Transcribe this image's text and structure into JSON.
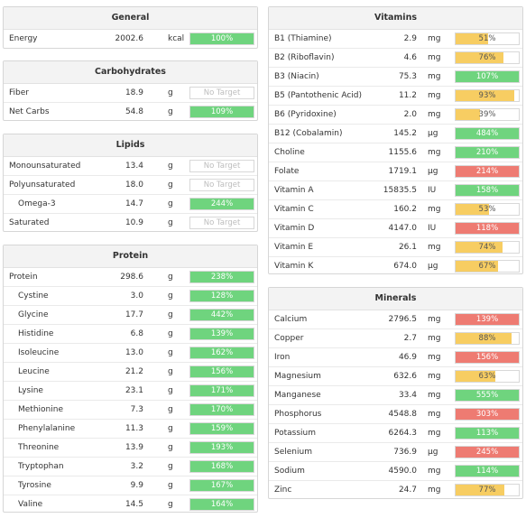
{
  "colors": {
    "green": "#6fd47e",
    "yellow": "#f7cd62",
    "red": "#ee7b72",
    "notarget_text": "#bdbdbd"
  },
  "panels": [
    {
      "key": "general",
      "title": "General",
      "rows": [
        {
          "name": "Energy",
          "amount": "2002.6",
          "unit": "kcal",
          "pct": "100%",
          "value": 100,
          "status": "green"
        }
      ]
    },
    {
      "key": "carbohydrates",
      "title": "Carbohydrates",
      "rows": [
        {
          "name": "Fiber",
          "amount": "18.9",
          "unit": "g",
          "pct": "No Target",
          "value": 0,
          "status": "none"
        },
        {
          "name": "Net Carbs",
          "amount": "54.8",
          "unit": "g",
          "pct": "109%",
          "value": 100,
          "status": "green"
        }
      ]
    },
    {
      "key": "lipids",
      "title": "Lipids",
      "rows": [
        {
          "name": "Monounsaturated",
          "amount": "13.4",
          "unit": "g",
          "pct": "No Target",
          "value": 0,
          "status": "none"
        },
        {
          "name": "Polyunsaturated",
          "amount": "18.0",
          "unit": "g",
          "pct": "No Target",
          "value": 0,
          "status": "none"
        },
        {
          "name": "Omega-3",
          "amount": "14.7",
          "unit": "g",
          "pct": "244%",
          "value": 100,
          "status": "green",
          "sub": true
        },
        {
          "name": "Saturated",
          "amount": "10.9",
          "unit": "g",
          "pct": "No Target",
          "value": 0,
          "status": "none"
        }
      ]
    },
    {
      "key": "protein",
      "title": "Protein",
      "rows": [
        {
          "name": "Protein",
          "amount": "298.6",
          "unit": "g",
          "pct": "238%",
          "value": 100,
          "status": "green"
        },
        {
          "name": "Cystine",
          "amount": "3.0",
          "unit": "g",
          "pct": "128%",
          "value": 100,
          "status": "green",
          "sub": true
        },
        {
          "name": "Glycine",
          "amount": "17.7",
          "unit": "g",
          "pct": "442%",
          "value": 100,
          "status": "green",
          "sub": true
        },
        {
          "name": "Histidine",
          "amount": "6.8",
          "unit": "g",
          "pct": "139%",
          "value": 100,
          "status": "green",
          "sub": true
        },
        {
          "name": "Isoleucine",
          "amount": "13.0",
          "unit": "g",
          "pct": "162%",
          "value": 100,
          "status": "green",
          "sub": true
        },
        {
          "name": "Leucine",
          "amount": "21.2",
          "unit": "g",
          "pct": "156%",
          "value": 100,
          "status": "green",
          "sub": true
        },
        {
          "name": "Lysine",
          "amount": "23.1",
          "unit": "g",
          "pct": "171%",
          "value": 100,
          "status": "green",
          "sub": true
        },
        {
          "name": "Methionine",
          "amount": "7.3",
          "unit": "g",
          "pct": "170%",
          "value": 100,
          "status": "green",
          "sub": true
        },
        {
          "name": "Phenylalanine",
          "amount": "11.3",
          "unit": "g",
          "pct": "159%",
          "value": 100,
          "status": "green",
          "sub": true
        },
        {
          "name": "Threonine",
          "amount": "13.9",
          "unit": "g",
          "pct": "193%",
          "value": 100,
          "status": "green",
          "sub": true
        },
        {
          "name": "Tryptophan",
          "amount": "3.2",
          "unit": "g",
          "pct": "168%",
          "value": 100,
          "status": "green",
          "sub": true
        },
        {
          "name": "Tyrosine",
          "amount": "9.9",
          "unit": "g",
          "pct": "167%",
          "value": 100,
          "status": "green",
          "sub": true
        },
        {
          "name": "Valine",
          "amount": "14.5",
          "unit": "g",
          "pct": "164%",
          "value": 100,
          "status": "green",
          "sub": true
        }
      ]
    },
    {
      "key": "vitamins",
      "title": "Vitamins",
      "rows": [
        {
          "name": "B1 (Thiamine)",
          "amount": "2.9",
          "unit": "mg",
          "pct": "51%",
          "value": 51,
          "status": "yellow"
        },
        {
          "name": "B2 (Riboflavin)",
          "amount": "4.6",
          "unit": "mg",
          "pct": "76%",
          "value": 76,
          "status": "yellow"
        },
        {
          "name": "B3 (Niacin)",
          "amount": "75.3",
          "unit": "mg",
          "pct": "107%",
          "value": 100,
          "status": "green"
        },
        {
          "name": "B5 (Pantothenic Acid)",
          "amount": "11.2",
          "unit": "mg",
          "pct": "93%",
          "value": 93,
          "status": "yellow"
        },
        {
          "name": "B6 (Pyridoxine)",
          "amount": "2.0",
          "unit": "mg",
          "pct": "39%",
          "value": 39,
          "status": "yellow"
        },
        {
          "name": "B12 (Cobalamin)",
          "amount": "145.2",
          "unit": "µg",
          "pct": "484%",
          "value": 100,
          "status": "green"
        },
        {
          "name": "Choline",
          "amount": "1155.6",
          "unit": "mg",
          "pct": "210%",
          "value": 100,
          "status": "green"
        },
        {
          "name": "Folate",
          "amount": "1719.1",
          "unit": "µg",
          "pct": "214%",
          "value": 100,
          "status": "red"
        },
        {
          "name": "Vitamin A",
          "amount": "15835.5",
          "unit": "IU",
          "pct": "158%",
          "value": 100,
          "status": "green"
        },
        {
          "name": "Vitamin C",
          "amount": "160.2",
          "unit": "mg",
          "pct": "53%",
          "value": 53,
          "status": "yellow"
        },
        {
          "name": "Vitamin D",
          "amount": "4147.0",
          "unit": "IU",
          "pct": "118%",
          "value": 100,
          "status": "red"
        },
        {
          "name": "Vitamin E",
          "amount": "26.1",
          "unit": "mg",
          "pct": "74%",
          "value": 74,
          "status": "yellow"
        },
        {
          "name": "Vitamin K",
          "amount": "674.0",
          "unit": "µg",
          "pct": "67%",
          "value": 67,
          "status": "yellow"
        }
      ]
    },
    {
      "key": "minerals",
      "title": "Minerals",
      "rows": [
        {
          "name": "Calcium",
          "amount": "2796.5",
          "unit": "mg",
          "pct": "139%",
          "value": 100,
          "status": "red"
        },
        {
          "name": "Copper",
          "amount": "2.7",
          "unit": "mg",
          "pct": "88%",
          "value": 88,
          "status": "yellow"
        },
        {
          "name": "Iron",
          "amount": "46.9",
          "unit": "mg",
          "pct": "156%",
          "value": 100,
          "status": "red"
        },
        {
          "name": "Magnesium",
          "amount": "632.6",
          "unit": "mg",
          "pct": "63%",
          "value": 63,
          "status": "yellow"
        },
        {
          "name": "Manganese",
          "amount": "33.4",
          "unit": "mg",
          "pct": "555%",
          "value": 100,
          "status": "green"
        },
        {
          "name": "Phosphorus",
          "amount": "4548.8",
          "unit": "mg",
          "pct": "303%",
          "value": 100,
          "status": "red"
        },
        {
          "name": "Potassium",
          "amount": "6264.3",
          "unit": "mg",
          "pct": "113%",
          "value": 100,
          "status": "green"
        },
        {
          "name": "Selenium",
          "amount": "736.9",
          "unit": "µg",
          "pct": "245%",
          "value": 100,
          "status": "red"
        },
        {
          "name": "Sodium",
          "amount": "4590.0",
          "unit": "mg",
          "pct": "114%",
          "value": 100,
          "status": "green"
        },
        {
          "name": "Zinc",
          "amount": "24.7",
          "unit": "mg",
          "pct": "77%",
          "value": 77,
          "status": "yellow"
        }
      ]
    }
  ]
}
